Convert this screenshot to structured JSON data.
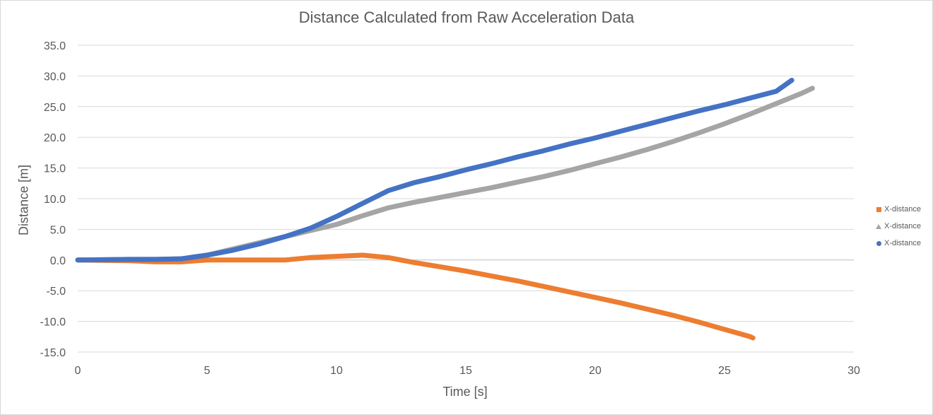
{
  "chart_data": {
    "type": "line",
    "title": "Distance Calculated from Raw Acceleration Data",
    "xlabel": "Time [s]",
    "ylabel": "Distance [m]",
    "xlim": [
      0,
      30
    ],
    "ylim": [
      -15,
      35
    ],
    "x_ticks": [
      "0",
      "5",
      "10",
      "15",
      "20",
      "25",
      "30"
    ],
    "y_ticks": [
      "35.0",
      "30.0",
      "25.0",
      "20.0",
      "15.0",
      "10.0",
      "5.0",
      "0.0",
      "-5.0",
      "-10.0",
      "-15.0"
    ],
    "grid": "horizontal",
    "legend_position": "right",
    "series": [
      {
        "name": "X-distance",
        "marker": "square",
        "color": "#ED7D31",
        "points": [
          [
            0,
            0
          ],
          [
            2,
            -0.1
          ],
          [
            3,
            -0.3
          ],
          [
            4,
            -0.3
          ],
          [
            5,
            0
          ],
          [
            6,
            0
          ],
          [
            7,
            0
          ],
          [
            8,
            0
          ],
          [
            9,
            0.4
          ],
          [
            10,
            0.6
          ],
          [
            11,
            0.8
          ],
          [
            12,
            0.4
          ],
          [
            13,
            -0.4
          ],
          [
            14,
            -1.1
          ],
          [
            15,
            -1.8
          ],
          [
            16,
            -2.6
          ],
          [
            17,
            -3.4
          ],
          [
            18,
            -4.3
          ],
          [
            19,
            -5.2
          ],
          [
            20,
            -6.1
          ],
          [
            21,
            -7.0
          ],
          [
            22,
            -8.0
          ],
          [
            23,
            -9.0
          ],
          [
            24,
            -10.1
          ],
          [
            25,
            -11.3
          ],
          [
            26,
            -12.5
          ],
          [
            26.1,
            -12.7
          ]
        ]
      },
      {
        "name": "X-distance",
        "marker": "triangle",
        "color": "#A5A5A5",
        "points": [
          [
            0,
            0
          ],
          [
            2,
            0.1
          ],
          [
            3,
            0.1
          ],
          [
            4,
            0.2
          ],
          [
            5,
            0.8
          ],
          [
            6,
            1.8
          ],
          [
            7,
            2.8
          ],
          [
            8,
            3.8
          ],
          [
            9,
            4.8
          ],
          [
            10,
            5.8
          ],
          [
            11,
            7.2
          ],
          [
            12,
            8.5
          ],
          [
            13,
            9.4
          ],
          [
            14,
            10.2
          ],
          [
            15,
            11.0
          ],
          [
            16,
            11.8
          ],
          [
            17,
            12.7
          ],
          [
            18,
            13.6
          ],
          [
            19,
            14.6
          ],
          [
            20,
            15.7
          ],
          [
            21,
            16.8
          ],
          [
            22,
            18.0
          ],
          [
            23,
            19.3
          ],
          [
            24,
            20.7
          ],
          [
            25,
            22.2
          ],
          [
            26,
            23.8
          ],
          [
            27,
            25.5
          ],
          [
            28,
            27.2
          ],
          [
            28.4,
            28.0
          ]
        ]
      },
      {
        "name": "X-distance",
        "marker": "circle",
        "color": "#4472C4",
        "points": [
          [
            0,
            0
          ],
          [
            2,
            0.1
          ],
          [
            3,
            0.1
          ],
          [
            4,
            0.2
          ],
          [
            5,
            0.8
          ],
          [
            6,
            1.6
          ],
          [
            7,
            2.6
          ],
          [
            8,
            3.8
          ],
          [
            9,
            5.2
          ],
          [
            10,
            7.1
          ],
          [
            11,
            9.2
          ],
          [
            12,
            11.3
          ],
          [
            13,
            12.6
          ],
          [
            14,
            13.6
          ],
          [
            15,
            14.7
          ],
          [
            16,
            15.7
          ],
          [
            17,
            16.8
          ],
          [
            18,
            17.8
          ],
          [
            19,
            18.9
          ],
          [
            20,
            19.9
          ],
          [
            21,
            21.0
          ],
          [
            22,
            22.1
          ],
          [
            23,
            23.2
          ],
          [
            24,
            24.3
          ],
          [
            25,
            25.3
          ],
          [
            26,
            26.4
          ],
          [
            27,
            27.5
          ],
          [
            27.6,
            29.3
          ]
        ]
      }
    ]
  }
}
